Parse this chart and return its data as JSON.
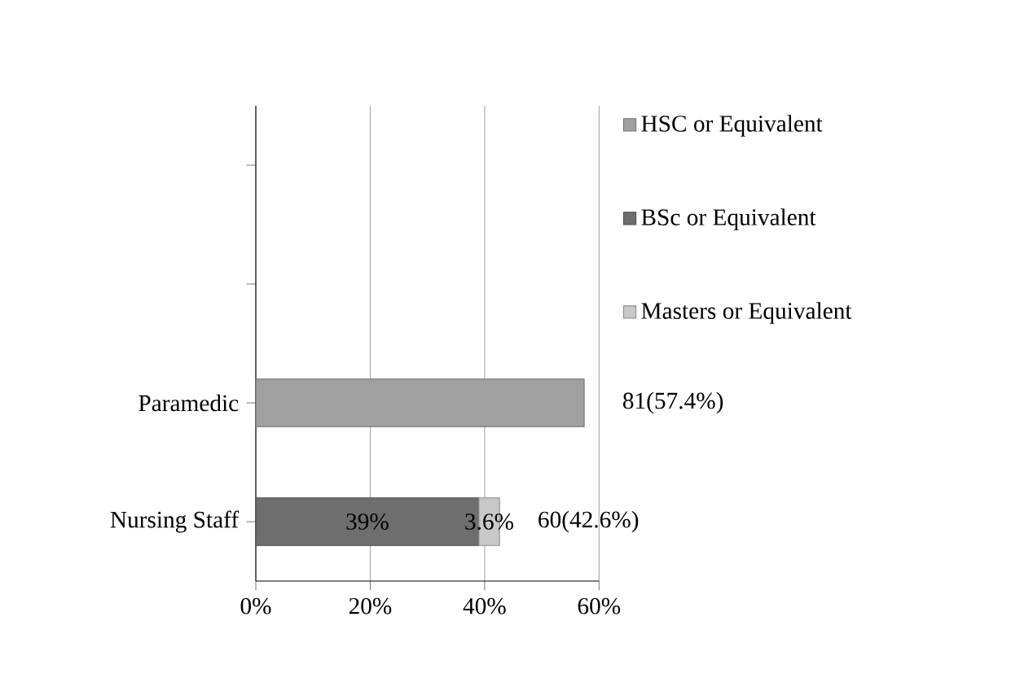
{
  "chart_data": {
    "type": "bar",
    "orientation": "horizontal",
    "stacked": true,
    "categories": [
      null,
      null,
      "Paramedic",
      "Nursing Staff"
    ],
    "series": [
      {
        "name": "HSC or Equivalent",
        "color": "#a0a0a0",
        "values": [
          null,
          null,
          57.4,
          null
        ]
      },
      {
        "name": "BSc or Equivalent",
        "color": "#6e6e6e",
        "values": [
          null,
          null,
          null,
          39
        ],
        "value_labels": [
          null,
          null,
          null,
          "39%"
        ]
      },
      {
        "name": "Masters or Equivalent",
        "color": "#c8c8c8",
        "values": [
          null,
          null,
          null,
          3.6
        ],
        "value_labels": [
          null,
          null,
          null,
          "3.6%"
        ]
      }
    ],
    "totals": [
      null,
      null,
      "81(57.4%)",
      "60(42.6%)"
    ],
    "xlim": [
      0,
      60
    ],
    "xticks": [
      {
        "value": 0,
        "label": "0%"
      },
      {
        "value": 20,
        "label": "20%"
      },
      {
        "value": 40,
        "label": "40%"
      },
      {
        "value": 60,
        "label": "60%"
      }
    ],
    "grid": "x",
    "legend": "right"
  }
}
